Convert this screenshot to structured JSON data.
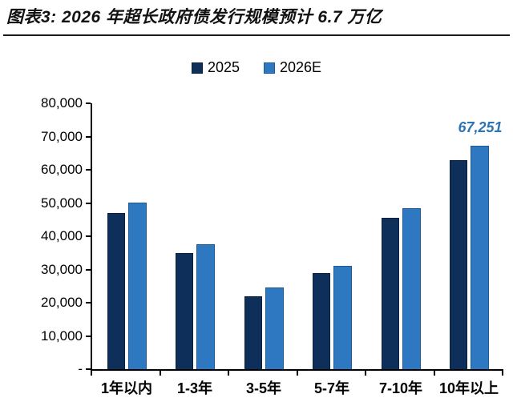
{
  "header": {
    "title": "图表3: 2026 年超长政府债发行规模预计 6.7 万亿"
  },
  "chart_data": {
    "type": "bar",
    "title": "图表3: 2026 年超长政府债发行规模预计 6.7 万亿",
    "categories": [
      "1年以内",
      "1-3年",
      "3-5年",
      "5-7年",
      "7-10年",
      "10年以上"
    ],
    "series": [
      {
        "name": "2025",
        "color": "#0e2f5a",
        "border_color": "#09203f",
        "values": [
          47000,
          35000,
          22000,
          29000,
          45500,
          63000
        ]
      },
      {
        "name": "2026E",
        "color": "#2e78c2",
        "border_color": "#1e5a98",
        "values": [
          50000,
          37500,
          24500,
          31000,
          48500,
          67251
        ]
      }
    ],
    "xlabel": "",
    "ylabel": "",
    "ylim": [
      0,
      80000
    ],
    "ytick_labels": [
      "-",
      "10,000",
      "20,000",
      "30,000",
      "40,000",
      "50,000",
      "60,000",
      "70,000",
      "80,000"
    ],
    "grid": false,
    "legend_position": "top-center",
    "annotation": {
      "text": "67,251",
      "series": "2026E",
      "category": "10年以上",
      "color": "#2e74b5"
    }
  }
}
